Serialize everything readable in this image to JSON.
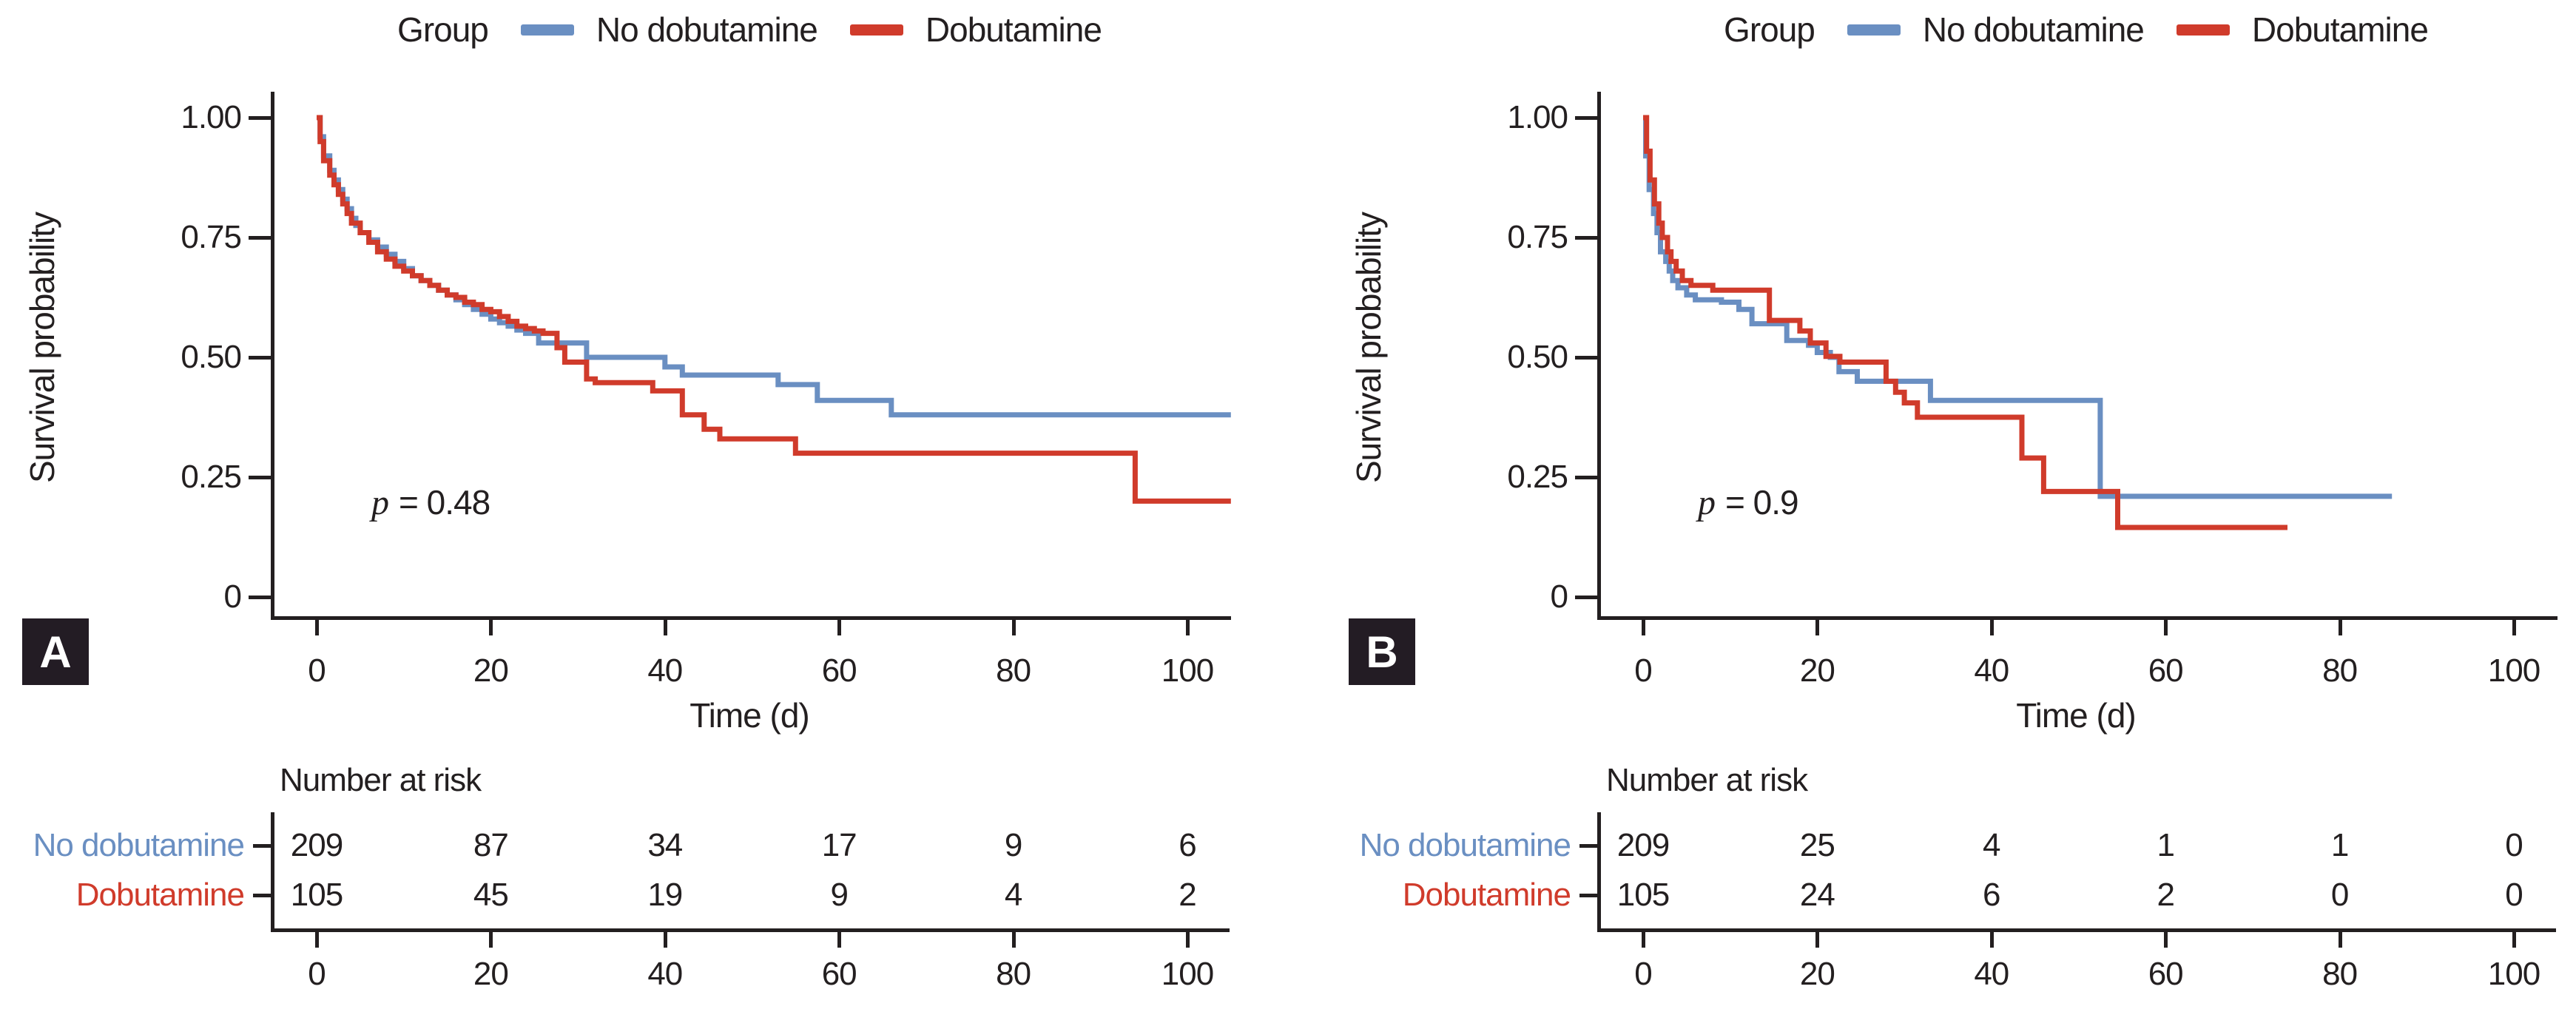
{
  "legend": {
    "title": "Group",
    "items": [
      {
        "label": "No dobutamine",
        "color": "#6a8fc2"
      },
      {
        "label": "Dobutamine",
        "color": "#d03b2b"
      }
    ]
  },
  "axes": {
    "y_label": "Survival probability",
    "x_label": "Time (d)",
    "y_ticks": [
      "1.00",
      "0.75",
      "0.50",
      "0.25",
      "0"
    ],
    "x_ticks": [
      "0",
      "20",
      "40",
      "60",
      "80",
      "100"
    ]
  },
  "panels": [
    {
      "label": "A",
      "p_var": "p",
      "p_rest": "= 0.48",
      "risk_title": "Number at risk",
      "risk_rows": [
        {
          "label": "No dobutamine",
          "color": "#6a8fc2"
        },
        {
          "label": "Dobutamine",
          "color": "#d03b2b"
        }
      ]
    },
    {
      "label": "B",
      "p_var": "p",
      "p_rest": "= 0.9",
      "risk_title": "Number at risk",
      "risk_rows": [
        {
          "label": "No dobutamine",
          "color": "#6a8fc2"
        },
        {
          "label": "Dobutamine",
          "color": "#d03b2b"
        }
      ]
    }
  ],
  "chart_data": [
    {
      "type": "line",
      "subtype": "kaplan-meier-step",
      "panel": "A",
      "title": "",
      "xlabel": "Time (d)",
      "ylabel": "Survival probability",
      "xlim": [
        0,
        105
      ],
      "ylim": [
        0,
        1
      ],
      "x_ticks": [
        0,
        20,
        40,
        60,
        80,
        100
      ],
      "y_ticks": [
        1.0,
        0.75,
        0.5,
        0.25,
        0
      ],
      "annotation": "p = 0.48",
      "legend_position": "top",
      "grid": false,
      "series": [
        {
          "name": "No dobutamine",
          "color": "#6a8fc2",
          "steps": [
            [
              0,
              1.0
            ],
            [
              0.4,
              0.96
            ],
            [
              0.8,
              0.92
            ],
            [
              1.5,
              0.89
            ],
            [
              2,
              0.87
            ],
            [
              2.5,
              0.85
            ],
            [
              3,
              0.83
            ],
            [
              3.5,
              0.81
            ],
            [
              4,
              0.79
            ],
            [
              4.5,
              0.775
            ],
            [
              5,
              0.76
            ],
            [
              6,
              0.745
            ],
            [
              7,
              0.73
            ],
            [
              8,
              0.715
            ],
            [
              9,
              0.7
            ],
            [
              10,
              0.685
            ],
            [
              11,
              0.67
            ],
            [
              12,
              0.66
            ],
            [
              13,
              0.65
            ],
            [
              14,
              0.64
            ],
            [
              15,
              0.63
            ],
            [
              16,
              0.62
            ],
            [
              17,
              0.61
            ],
            [
              18,
              0.6
            ],
            [
              19,
              0.59
            ],
            [
              20,
              0.58
            ],
            [
              21,
              0.572
            ],
            [
              22,
              0.565
            ],
            [
              23,
              0.557
            ],
            [
              24,
              0.55
            ],
            [
              25.5,
              0.53
            ],
            [
              31,
              0.5
            ],
            [
              40,
              0.48
            ],
            [
              42,
              0.463
            ],
            [
              53,
              0.443
            ],
            [
              57.5,
              0.41
            ],
            [
              66,
              0.38
            ],
            [
              105,
              0.38
            ]
          ]
        },
        {
          "name": "Dobutamine",
          "color": "#d03b2b",
          "steps": [
            [
              0,
              1.0
            ],
            [
              0.4,
              0.95
            ],
            [
              0.8,
              0.91
            ],
            [
              1.5,
              0.88
            ],
            [
              2,
              0.86
            ],
            [
              2.5,
              0.84
            ],
            [
              3,
              0.82
            ],
            [
              3.5,
              0.8
            ],
            [
              4,
              0.78
            ],
            [
              5,
              0.76
            ],
            [
              6,
              0.74
            ],
            [
              7,
              0.72
            ],
            [
              8,
              0.705
            ],
            [
              9,
              0.69
            ],
            [
              10,
              0.68
            ],
            [
              11,
              0.67
            ],
            [
              12,
              0.66
            ],
            [
              13,
              0.65
            ],
            [
              14,
              0.64
            ],
            [
              15,
              0.63
            ],
            [
              16,
              0.625
            ],
            [
              17,
              0.615
            ],
            [
              18,
              0.61
            ],
            [
              19,
              0.6
            ],
            [
              20,
              0.595
            ],
            [
              21,
              0.585
            ],
            [
              22,
              0.575
            ],
            [
              23,
              0.565
            ],
            [
              24,
              0.56
            ],
            [
              25,
              0.555
            ],
            [
              26,
              0.55
            ],
            [
              27.6,
              0.52
            ],
            [
              28.5,
              0.49
            ],
            [
              31,
              0.455
            ],
            [
              32,
              0.447
            ],
            [
              38.6,
              0.43
            ],
            [
              42,
              0.38
            ],
            [
              44.5,
              0.35
            ],
            [
              46.3,
              0.33
            ],
            [
              55,
              0.3
            ],
            [
              94,
              0.3
            ],
            [
              94,
              0.2
            ],
            [
              105,
              0.2
            ]
          ]
        }
      ],
      "number_at_risk": {
        "times": [
          0,
          20,
          40,
          60,
          80,
          100
        ],
        "rows": [
          {
            "name": "No dobutamine",
            "counts": [
              "209",
              "87",
              "34",
              "17",
              "9",
              "6"
            ]
          },
          {
            "name": "Dobutamine",
            "counts": [
              "105",
              "45",
              "19",
              "9",
              "4",
              "2"
            ]
          }
        ]
      }
    },
    {
      "type": "line",
      "subtype": "kaplan-meier-step",
      "panel": "B",
      "title": "",
      "xlabel": "Time (d)",
      "ylabel": "Survival probability",
      "xlim": [
        0,
        105
      ],
      "ylim": [
        0,
        1
      ],
      "x_ticks": [
        0,
        20,
        40,
        60,
        80,
        100
      ],
      "y_ticks": [
        1.0,
        0.75,
        0.5,
        0.25,
        0
      ],
      "annotation": "p = 0.9",
      "legend_position": "top",
      "grid": false,
      "series": [
        {
          "name": "No dobutamine",
          "color": "#6a8fc2",
          "steps": [
            [
              0,
              1.0
            ],
            [
              0.3,
              0.92
            ],
            [
              0.7,
              0.85
            ],
            [
              1.2,
              0.8
            ],
            [
              1.6,
              0.76
            ],
            [
              2,
              0.72
            ],
            [
              2.6,
              0.7
            ],
            [
              3,
              0.68
            ],
            [
              3.4,
              0.66
            ],
            [
              4,
              0.645
            ],
            [
              5,
              0.63
            ],
            [
              6,
              0.62
            ],
            [
              9,
              0.615
            ],
            [
              11,
              0.6
            ],
            [
              12.5,
              0.57
            ],
            [
              16.5,
              0.535
            ],
            [
              19,
              0.525
            ],
            [
              20,
              0.51
            ],
            [
              21.5,
              0.5
            ],
            [
              22.5,
              0.47
            ],
            [
              24.6,
              0.45
            ],
            [
              33,
              0.41
            ],
            [
              52.5,
              0.41
            ],
            [
              52.5,
              0.21
            ],
            [
              86,
              0.21
            ]
          ]
        },
        {
          "name": "Dobutamine",
          "color": "#d03b2b",
          "steps": [
            [
              0,
              1.0
            ],
            [
              0.4,
              0.93
            ],
            [
              0.8,
              0.87
            ],
            [
              1.3,
              0.82
            ],
            [
              1.8,
              0.78
            ],
            [
              2.2,
              0.75
            ],
            [
              2.8,
              0.72
            ],
            [
              3.2,
              0.7
            ],
            [
              3.8,
              0.68
            ],
            [
              4.5,
              0.66
            ],
            [
              5.5,
              0.65
            ],
            [
              8,
              0.64
            ],
            [
              14.5,
              0.577
            ],
            [
              18,
              0.555
            ],
            [
              19.2,
              0.53
            ],
            [
              21,
              0.502
            ],
            [
              22.6,
              0.49
            ],
            [
              27.9,
              0.45
            ],
            [
              29,
              0.427
            ],
            [
              30,
              0.405
            ],
            [
              31.5,
              0.375
            ],
            [
              43.5,
              0.375
            ],
            [
              43.5,
              0.29
            ],
            [
              46,
              0.29
            ],
            [
              46,
              0.22
            ],
            [
              54.5,
              0.22
            ],
            [
              54.5,
              0.145
            ],
            [
              74,
              0.145
            ]
          ]
        }
      ],
      "number_at_risk": {
        "times": [
          0,
          20,
          40,
          60,
          80,
          100
        ],
        "rows": [
          {
            "name": "No dobutamine",
            "counts": [
              "209",
              "25",
              "4",
              "1",
              "1",
              "0"
            ]
          },
          {
            "name": "Dobutamine",
            "counts": [
              "105",
              "24",
              "6",
              "2",
              "0",
              "0"
            ]
          }
        ]
      }
    }
  ]
}
